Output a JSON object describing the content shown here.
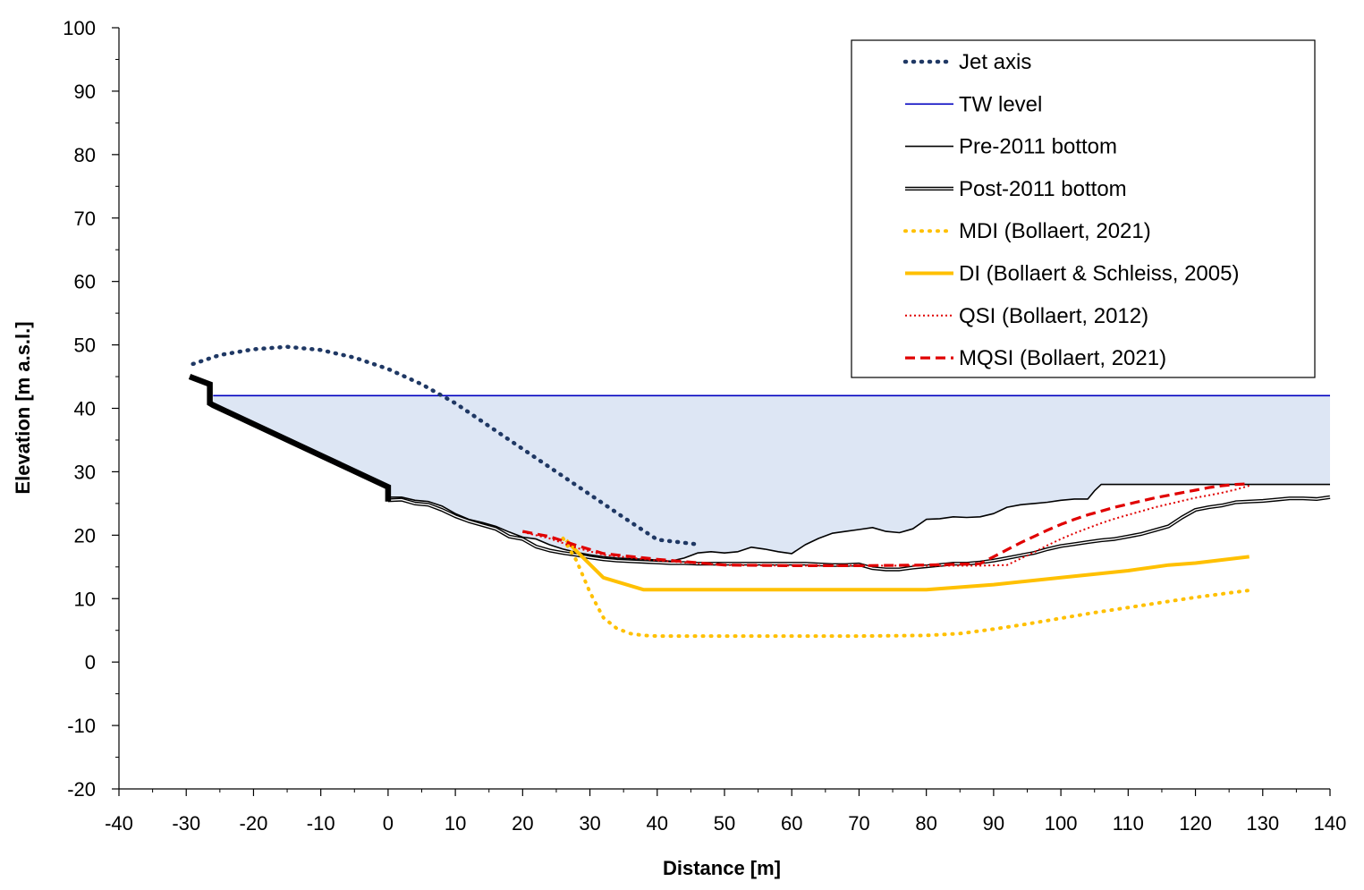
{
  "chart_data": {
    "type": "line",
    "title": "",
    "xlabel": "Distance [m]",
    "ylabel": "Elevation [m a.s.l.]",
    "xlim": [
      -40,
      140
    ],
    "ylim": [
      -20,
      100
    ],
    "x_ticks": [
      -40,
      -30,
      -20,
      -10,
      0,
      10,
      20,
      30,
      40,
      50,
      60,
      70,
      80,
      90,
      100,
      110,
      120,
      130,
      140
    ],
    "y_ticks": [
      -20,
      -10,
      0,
      10,
      20,
      30,
      40,
      50,
      60,
      70,
      80,
      90,
      100
    ],
    "x_tick_labels": [
      "-40",
      "-30",
      "-20",
      "-10",
      "0",
      "10",
      "20",
      "30",
      "40",
      "50",
      "60",
      "70",
      "80",
      "90",
      "100",
      "110",
      "120",
      "130",
      "140"
    ],
    "y_tick_labels": [
      "-20",
      "-10",
      "0",
      "10",
      "20",
      "30",
      "40",
      "50",
      "60",
      "70",
      "80",
      "90",
      "100"
    ],
    "grid": false,
    "legend_position": "top-right",
    "colors": {
      "jet": "#1f3864",
      "tw": "#0000c0",
      "black": "#000000",
      "gold": "#ffc000",
      "red": "#e00000",
      "water_fill": "#dde6f4"
    },
    "water_fill": {
      "label": "",
      "level": 42,
      "x": [
        -26,
        -26,
        0,
        0,
        2,
        4,
        6,
        8,
        10,
        12,
        14,
        16,
        18,
        20,
        22,
        24,
        26,
        28,
        30,
        32,
        34,
        36,
        38,
        40,
        42,
        44,
        46,
        48,
        50,
        52,
        54,
        56,
        58,
        60,
        62,
        64,
        66,
        68,
        70,
        72,
        74,
        76,
        78,
        80,
        82,
        84,
        86,
        88,
        90,
        92,
        94,
        96,
        98,
        100,
        102,
        104,
        105,
        106,
        110,
        120,
        130,
        140
      ],
      "y": [
        43.8,
        40.5,
        27.5,
        26,
        26,
        25.5,
        25.3,
        24.6,
        23.4,
        22.5,
        22,
        21.4,
        20.5,
        19.7,
        19.4,
        18.5,
        17.8,
        17.3,
        16.9,
        16.6,
        16.4,
        16.3,
        16.2,
        16.1,
        15.9,
        16.4,
        17.2,
        17.4,
        17.2,
        17.4,
        18.1,
        17.8,
        17.4,
        17.1,
        18.5,
        19.5,
        20.3,
        20.6,
        20.9,
        21.2,
        20.6,
        20.4,
        21,
        22.5,
        22.6,
        22.9,
        22.8,
        22.9,
        23.4,
        24.4,
        24.8,
        25,
        25.2,
        25.5,
        25.7,
        25.7,
        27,
        28,
        28,
        28,
        28,
        28
      ]
    },
    "series": [
      {
        "name": "Jet axis",
        "style": "dotted-thick",
        "x": [
          -29,
          -25,
          -20,
          -15,
          -10,
          -5,
          0,
          5,
          10,
          15,
          20,
          25,
          30,
          35,
          40,
          46.5
        ],
        "y": [
          47,
          48.4,
          49.3,
          49.7,
          49.2,
          48,
          46.2,
          43.8,
          40.8,
          37.2,
          33.6,
          30,
          26.4,
          22.8,
          19.3,
          18.5
        ]
      },
      {
        "name": "TW level",
        "style": "solid-thin",
        "x": [
          -26,
          140
        ],
        "y": [
          42,
          42
        ]
      },
      {
        "name": "Pre-2011 bottom",
        "style": "solid-thin",
        "x": [
          0,
          2,
          4,
          6,
          8,
          10,
          12,
          14,
          16,
          18,
          20,
          22,
          24,
          26,
          28,
          30,
          32,
          34,
          36,
          38,
          40,
          42,
          44,
          46,
          48,
          50,
          52,
          54,
          56,
          58,
          60,
          62,
          64,
          66,
          68,
          70,
          72,
          74,
          76,
          78,
          80,
          82,
          84,
          86,
          88,
          90,
          92,
          94,
          96,
          98,
          100,
          102,
          104,
          105,
          106,
          110,
          120,
          130,
          140
        ],
        "y": [
          26,
          26,
          25.5,
          25.3,
          24.6,
          23.4,
          22.5,
          22,
          21.4,
          20.5,
          19.7,
          19.4,
          18.5,
          17.8,
          17.3,
          16.9,
          16.6,
          16.4,
          16.3,
          16.2,
          16.1,
          15.9,
          16.4,
          17.2,
          17.4,
          17.2,
          17.4,
          18.1,
          17.8,
          17.4,
          17.1,
          18.5,
          19.5,
          20.3,
          20.6,
          20.9,
          21.2,
          20.6,
          20.4,
          21,
          22.5,
          22.6,
          22.9,
          22.8,
          22.9,
          23.4,
          24.4,
          24.8,
          25,
          25.2,
          25.5,
          25.7,
          25.7,
          27,
          28,
          28,
          28,
          28,
          28
        ]
      },
      {
        "name": "Post-2011 bottom",
        "style": "double",
        "x": [
          0,
          2,
          4,
          6,
          8,
          10,
          12,
          14,
          16,
          18,
          20,
          22,
          24,
          26,
          28,
          30,
          32,
          34,
          36,
          38,
          40,
          42,
          44,
          46,
          48,
          50,
          52,
          54,
          56,
          58,
          60,
          62,
          64,
          66,
          68,
          70,
          72,
          74,
          76,
          78,
          80,
          82,
          84,
          86,
          88,
          90,
          92,
          94,
          96,
          98,
          100,
          102,
          104,
          106,
          108,
          110,
          112,
          114,
          116,
          118,
          120,
          122,
          124,
          126,
          128,
          130,
          132,
          134,
          136,
          138,
          140
        ],
        "y": [
          25.5,
          25.6,
          25,
          24.8,
          24,
          23,
          22.2,
          21.6,
          21,
          19.8,
          19.4,
          18.2,
          17.6,
          17.2,
          16.9,
          16.5,
          16.2,
          16,
          15.9,
          15.8,
          15.7,
          15.6,
          15.6,
          15.5,
          15.5,
          15.5,
          15.5,
          15.5,
          15.5,
          15.5,
          15.5,
          15.5,
          15.4,
          15.3,
          15.3,
          15.4,
          14.8,
          14.6,
          14.6,
          14.9,
          15.1,
          15.3,
          15.5,
          15.5,
          15.7,
          16,
          16.4,
          16.8,
          17.2,
          17.8,
          18.3,
          18.6,
          18.9,
          19.2,
          19.4,
          19.8,
          20.2,
          20.8,
          21.4,
          22.8,
          24,
          24.4,
          24.7,
          25.2,
          25.3,
          25.4,
          25.6,
          25.8,
          25.8,
          25.7,
          26
        ]
      },
      {
        "name": "MDI (Bollaert, 2021)",
        "style": "dotted-thick",
        "x": [
          26,
          28,
          30,
          32,
          34,
          36,
          38,
          40,
          50,
          60,
          70,
          80,
          85,
          90,
          95,
          100,
          105,
          110,
          115,
          120,
          125,
          128
        ],
        "y": [
          19.5,
          16,
          11,
          7,
          5.3,
          4.5,
          4.2,
          4.1,
          4.1,
          4.1,
          4.1,
          4.2,
          4.5,
          5.2,
          6,
          6.9,
          7.8,
          8.6,
          9.4,
          10.2,
          10.9,
          11.3
        ]
      },
      {
        "name": "DI (Bollaert & Schleiss, 2005)",
        "style": "solid-thick",
        "x": [
          26.5,
          28,
          32,
          38,
          50,
          60,
          70,
          80,
          90,
          100,
          110,
          116,
          120,
          128
        ],
        "y": [
          19.2,
          17.5,
          13.3,
          11.4,
          11.4,
          11.4,
          11.4,
          11.4,
          12.2,
          13.3,
          14.4,
          15.3,
          15.6,
          16.6
        ]
      },
      {
        "name": "QSI (Bollaert, 2012)",
        "style": "dotted-thin",
        "x": [
          20,
          24,
          28,
          32,
          40,
          50,
          60,
          70,
          80,
          88,
          92,
          94,
          96,
          98,
          100,
          102,
          104,
          106,
          108,
          110,
          112,
          114,
          116,
          118,
          120,
          122,
          124,
          126,
          128
        ],
        "y": [
          20.5,
          19.5,
          18,
          16.9,
          16,
          15.3,
          15.2,
          15.2,
          15.2,
          15.2,
          15.3,
          16.3,
          17.3,
          18.4,
          19.4,
          20.3,
          21.1,
          21.9,
          22.6,
          23.2,
          23.8,
          24.4,
          24.9,
          25.4,
          25.9,
          26.3,
          26.7,
          27.2,
          27.8
        ]
      },
      {
        "name": "MQSI (Bollaert, 2021)",
        "style": "dashed",
        "x": [
          20,
          24,
          28,
          32,
          40,
          50,
          60,
          70,
          80,
          88,
          90,
          92,
          94,
          96,
          98,
          100,
          102,
          104,
          106,
          108,
          110,
          112,
          114,
          116,
          118,
          120,
          122,
          124,
          126,
          128
        ],
        "y": [
          20.6,
          19.8,
          18.4,
          17.1,
          16.2,
          15.3,
          15.2,
          15.2,
          15.3,
          15.5,
          16.6,
          17.7,
          18.8,
          19.8,
          20.8,
          21.7,
          22.5,
          23.2,
          23.8,
          24.4,
          24.9,
          25.4,
          25.9,
          26.3,
          26.7,
          27.1,
          27.5,
          27.8,
          28,
          28.1
        ]
      },
      {
        "name": "Structure",
        "style": "structure",
        "in_legend": false,
        "x": [
          -29.5,
          -26.5,
          -26.5,
          -26,
          0,
          0,
          0
        ],
        "y": [
          45,
          43.8,
          40.8,
          40.5,
          27.6,
          27.2,
          25.3
        ]
      }
    ]
  }
}
